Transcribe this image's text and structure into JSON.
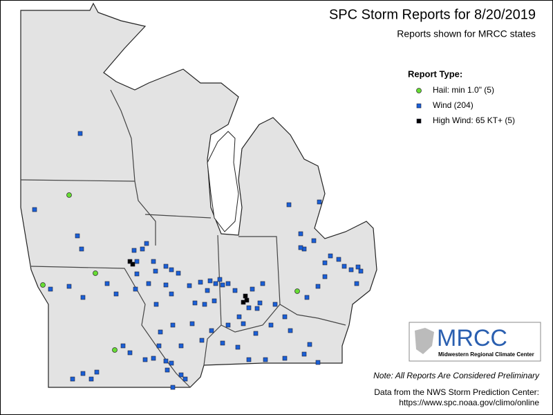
{
  "title": "SPC Storm Reports for 8/20/2019",
  "subtitle": "Reports shown for MRCC states",
  "legend": {
    "title": "Report Type:",
    "items": [
      {
        "label": "Hail: min 1.0\" (5)",
        "color": "#66dd33"
      },
      {
        "label": "Wind (204)",
        "color": "#1a5fd6"
      },
      {
        "label": "High Wind: 65 KT+ (5)",
        "color": "#000000"
      }
    ]
  },
  "logo": {
    "name": "MRCC",
    "full_name": "Midwestern Regional Climate Center"
  },
  "note": "Note: All Reports Are Considered Preliminary",
  "source": [
    "Data from the NWS Storm Prediction Center:",
    "https://www.spc.noaa.gov/climo/online"
  ]
}
